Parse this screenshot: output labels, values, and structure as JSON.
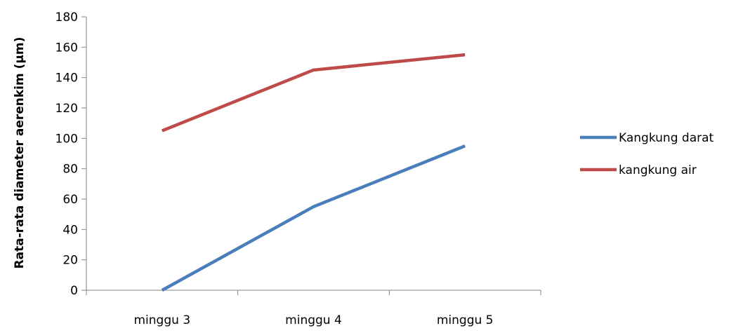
{
  "chart_data": {
    "type": "line",
    "title": "",
    "xlabel": "",
    "ylabel": "Rata-rata diameter aerenkim (µm)",
    "categories": [
      "minggu 3",
      "minggu 4",
      "minggu 5"
    ],
    "ylim": [
      0,
      180
    ],
    "yticks": [
      0,
      20,
      40,
      60,
      80,
      100,
      120,
      140,
      160,
      180
    ],
    "grid": false,
    "legend_position": "right",
    "series": [
      {
        "name": "Kangkung darat",
        "values": [
          0,
          55,
          95
        ],
        "color": "#4a7ebb"
      },
      {
        "name": "kangkung air",
        "values": [
          105,
          145,
          155
        ],
        "color": "#be4b48"
      }
    ]
  }
}
